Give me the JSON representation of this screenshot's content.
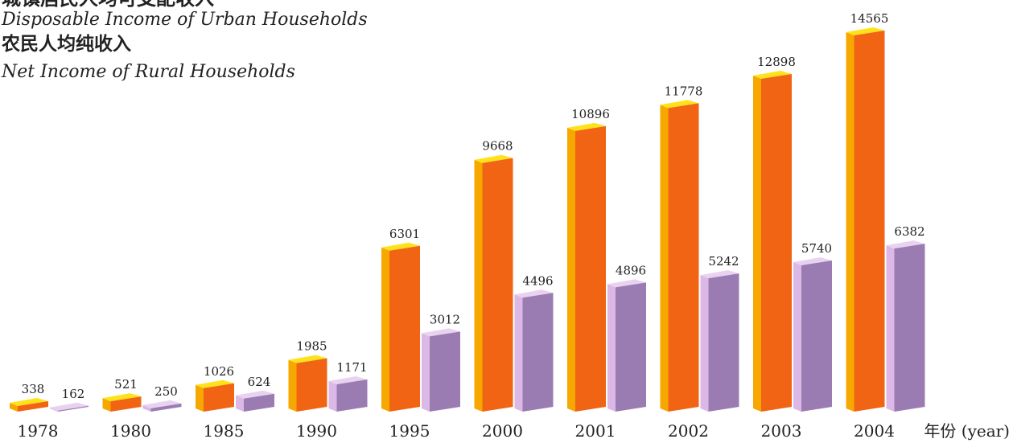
{
  "chart_data": {
    "type": "bar3d",
    "categories": [
      "1978",
      "1980",
      "1985",
      "1990",
      "1995",
      "2000",
      "2001",
      "2002",
      "2003",
      "2004"
    ],
    "x_label": "年份 (year)",
    "series": [
      {
        "name": "城镇居民人均可支配收入",
        "name_en": "Disposable Income of Urban Households",
        "color": "#f06414",
        "side_color": "#f7a800",
        "top_color": "#ffe21a",
        "values": [
          338,
          521,
          1026,
          1985,
          6301,
          9668,
          10896,
          11778,
          12898,
          14565
        ]
      },
      {
        "name": "农民人均纯收入",
        "name_en": "Net Income of Rural Households",
        "color": "#9b7cb2",
        "side_color": "#dcb8e6",
        "top_color": "#e9d2ef",
        "values": [
          162,
          250,
          624,
          1171,
          3012,
          4496,
          4896,
          5242,
          5740,
          6382
        ]
      }
    ]
  }
}
